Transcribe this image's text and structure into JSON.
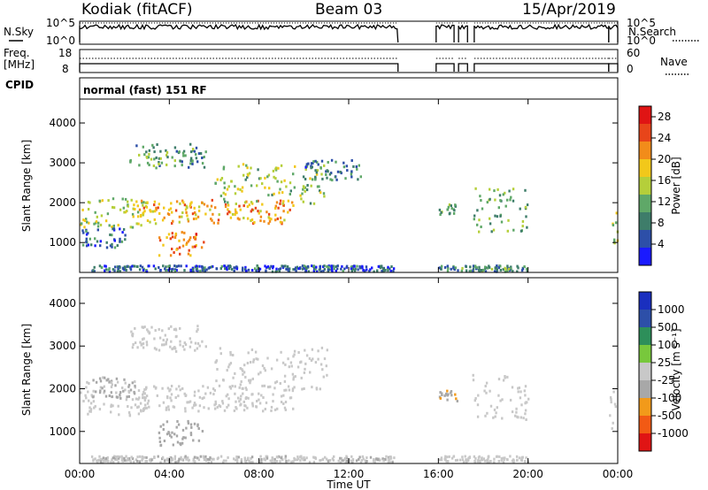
{
  "header": {
    "station": "Kodiak (fitACF)",
    "beam": "Beam 03",
    "date": "15/Apr/2019"
  },
  "noise_panel": {
    "left_label": "N.Sky",
    "right_label": "N.Search",
    "tick_top": "10^5",
    "tick_bottom": "10^0"
  },
  "freq_panel": {
    "left_label_line1": "Freq.",
    "left_label_line2": "[MHz]",
    "right_label": "Nave",
    "left_tick_top": "18",
    "left_tick_bottom": "8",
    "right_tick_top": "60",
    "right_tick_bottom": "0"
  },
  "cpid": {
    "label": "CPID",
    "value": "normal (fast) 151 RF"
  },
  "colors": {
    "power_scale": [
      "#1a1aff",
      "#2d4fa8",
      "#3e7d6a",
      "#5fa868",
      "#b5cf3a",
      "#f2c81a",
      "#f28c1a",
      "#e8451a",
      "#e01414"
    ],
    "velocity_scale": [
      "#e01414",
      "#f25a14",
      "#f29a1a",
      "#a8a8a8",
      "#c8c8c8",
      "#78c83c",
      "#2d8f5a",
      "#2d4fa8",
      "#1a2fbf"
    ]
  },
  "chart_data": [
    {
      "type": "heatmap",
      "name": "power",
      "ylabel": "Slant Range [km]",
      "yticks": [
        "1000",
        "2000",
        "3000",
        "4000"
      ],
      "ylim": [
        250,
        4600
      ],
      "colorbar_label": "Power [dB]",
      "colorbar_ticks": [
        "4",
        "8",
        "12",
        "16",
        "20",
        "24",
        "28"
      ],
      "colorbar_range": [
        0,
        30
      ],
      "x_range_hours": [
        0,
        24
      ],
      "regions": [
        {
          "t0": 2.2,
          "t1": 5.6,
          "r0": 2900,
          "r1": 3500,
          "v": 10
        },
        {
          "t0": 0.0,
          "t1": 3.0,
          "r0": 1400,
          "r1": 2200,
          "v": 15
        },
        {
          "t0": 2.5,
          "t1": 9.5,
          "r0": 1500,
          "r1": 2100,
          "v": 20
        },
        {
          "t0": 6.0,
          "t1": 11.0,
          "r0": 2000,
          "r1": 3000,
          "v": 14
        },
        {
          "t0": 10.0,
          "t1": 12.5,
          "r0": 2600,
          "r1": 3100,
          "v": 8
        },
        {
          "t0": 3.5,
          "t1": 5.5,
          "r0": 700,
          "r1": 1300,
          "v": 22
        },
        {
          "t0": 0.0,
          "t1": 2.0,
          "r0": 900,
          "r1": 1400,
          "v": 7
        },
        {
          "t0": 17.5,
          "t1": 20.0,
          "r0": 1300,
          "r1": 2400,
          "v": 12
        },
        {
          "t0": 16.0,
          "t1": 16.8,
          "r0": 1700,
          "r1": 2000,
          "v": 10
        },
        {
          "t0": 23.6,
          "t1": 24.0,
          "r0": 1000,
          "r1": 2000,
          "v": 14
        },
        {
          "t0": 0.5,
          "t1": 14.0,
          "r0": 300,
          "r1": 450,
          "v": 6
        },
        {
          "t0": 16.0,
          "t1": 20.0,
          "r0": 300,
          "r1": 450,
          "v": 9
        }
      ]
    },
    {
      "type": "heatmap",
      "name": "velocity",
      "ylabel": "Slant Range [km]",
      "yticks": [
        "1000",
        "2000",
        "3000",
        "4000"
      ],
      "ylim": [
        250,
        4600
      ],
      "colorbar_label": "Velocity [m s⁻¹]",
      "colorbar_ticks": [
        "1000",
        "500",
        "100",
        "25",
        "-25",
        "-100",
        "-500",
        "-1000"
      ],
      "colorbar_range": [
        -1000,
        1000
      ],
      "x_range_hours": [
        0,
        24
      ],
      "xticks": [
        "00:00",
        "04:00",
        "08:00",
        "12:00",
        "16:00",
        "20:00",
        "00:00"
      ],
      "xlabel": "Time UT",
      "regions": [
        {
          "t0": 2.2,
          "t1": 5.6,
          "r0": 2900,
          "r1": 3500,
          "v": 0
        },
        {
          "t0": 0.0,
          "t1": 3.0,
          "r0": 1400,
          "r1": 2200,
          "v": 0
        },
        {
          "t0": 2.5,
          "t1": 9.5,
          "r0": 1500,
          "r1": 2100,
          "v": 10
        },
        {
          "t0": 6.0,
          "t1": 11.0,
          "r0": 2000,
          "r1": 3000,
          "v": 0
        },
        {
          "t0": 3.5,
          "t1": 5.5,
          "r0": 700,
          "r1": 1300,
          "v": -200
        },
        {
          "t0": 0.5,
          "t1": 2.5,
          "r0": 1800,
          "r1": 2300,
          "v": -150
        },
        {
          "t0": 17.5,
          "t1": 20.0,
          "r0": 1300,
          "r1": 2400,
          "v": 0
        },
        {
          "t0": 16.0,
          "t1": 16.8,
          "r0": 1700,
          "r1": 2000,
          "v": -300
        },
        {
          "t0": 23.6,
          "t1": 24.0,
          "r0": 1000,
          "r1": 2000,
          "v": 0
        },
        {
          "t0": 0.5,
          "t1": 14.0,
          "r0": 300,
          "r1": 450,
          "v": -80
        },
        {
          "t0": 16.0,
          "t1": 20.0,
          "r0": 300,
          "r1": 450,
          "v": 50
        }
      ]
    }
  ]
}
